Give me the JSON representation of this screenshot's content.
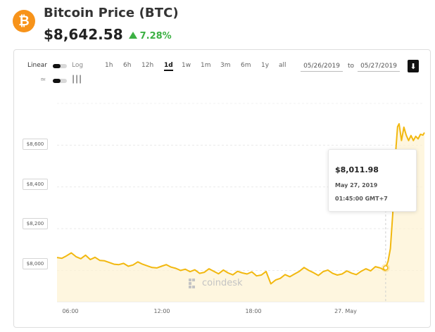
{
  "header": {
    "logo_glyph": "₿",
    "title": "Bitcoin Price (BTC)",
    "price": "$8,642.58",
    "change": "7.28%",
    "change_direction": "up"
  },
  "controls": {
    "scale_linear_label": "Linear",
    "scale_log_label": "Log",
    "ranges": [
      "1h",
      "6h",
      "12h",
      "1d",
      "1w",
      "1m",
      "3m",
      "6m",
      "1y",
      "all"
    ],
    "active_range": "1d",
    "date_from": "05/26/2019",
    "to_label": "to",
    "date_to": "05/27/2019",
    "download_icon": "download-icon",
    "line_chart_icon": "line-chart-icon",
    "candlestick_icon": "candlestick-icon"
  },
  "tooltip": {
    "price": "$8,011.98",
    "date": "May 27, 2019",
    "time": "01:45:00 GMT+7"
  },
  "watermark": "coindesk",
  "colors": {
    "brand_orange": "#f7931a",
    "line": "#f2b80f",
    "area": "#fdf2d2",
    "up_green": "#3cb043"
  },
  "chart_data": {
    "type": "area",
    "title": "",
    "xlabel": "",
    "ylabel": "",
    "y_ticks": [
      "$8,000",
      "$8,200",
      "$8,400",
      "$8,600"
    ],
    "y_tick_values": [
      8000,
      8200,
      8400,
      8600
    ],
    "ylim": [
      7850,
      8820
    ],
    "x_ticks": [
      "06:00",
      "12:00",
      "18:00",
      "27. May"
    ],
    "x_tick_hours": [
      6,
      12,
      18,
      24
    ],
    "xlim_hours": [
      5,
      28.2
    ],
    "grid": true,
    "series": [
      {
        "hours": [
          5.0,
          5.3,
          5.6,
          5.9,
          6.2,
          6.5,
          6.8,
          7.1,
          7.4,
          7.7,
          8.0,
          8.3,
          8.6,
          8.9,
          9.2,
          9.5,
          9.8,
          10.1,
          10.4,
          10.7,
          11.0,
          11.3,
          11.6,
          11.9,
          12.2,
          12.5,
          12.8,
          13.1,
          13.4,
          13.7,
          14.0,
          14.3,
          14.6,
          14.9,
          15.2,
          15.5,
          15.8,
          16.1,
          16.4,
          16.7,
          17.0,
          17.3,
          17.6,
          17.9,
          18.2,
          18.5,
          18.8,
          19.1,
          19.4,
          19.7,
          20.0,
          20.3,
          20.6,
          20.9,
          21.2,
          21.5,
          21.8,
          22.1,
          22.4,
          22.7,
          23.0,
          23.3,
          23.6,
          23.9,
          24.2,
          24.5,
          24.8,
          25.1,
          25.4,
          25.7,
          25.75,
          25.9,
          26.05,
          26.2,
          26.3,
          26.4,
          26.5,
          26.6,
          26.75,
          26.9,
          27.05,
          27.2,
          27.35,
          27.5,
          27.65,
          27.8,
          27.95,
          28.1,
          28.2
        ],
        "values": [
          8062,
          8058,
          8070,
          8084,
          8066,
          8056,
          8073,
          8052,
          8063,
          8048,
          8046,
          8038,
          8030,
          8028,
          8034,
          8020,
          8026,
          8041,
          8030,
          8022,
          8014,
          8012,
          8020,
          8028,
          8016,
          8010,
          8000,
          8006,
          7994,
          8003,
          7986,
          7991,
          8008,
          7996,
          7984,
          8002,
          7988,
          7979,
          7996,
          7988,
          7983,
          7993,
          7974,
          7978,
          7995,
          7936,
          7954,
          7962,
          7980,
          7970,
          7983,
          7996,
          8014,
          8000,
          7989,
          7976,
          7994,
          8002,
          7986,
          7978,
          7983,
          7998,
          7987,
          7980,
          7996,
          8008,
          7998,
          8018,
          8012,
          8001,
          8012,
          8044,
          8104,
          8272,
          8462,
          8584,
          8688,
          8702,
          8622,
          8686,
          8648,
          8622,
          8646,
          8622,
          8642,
          8630,
          8652,
          8648,
          8660
        ]
      }
    ]
  }
}
